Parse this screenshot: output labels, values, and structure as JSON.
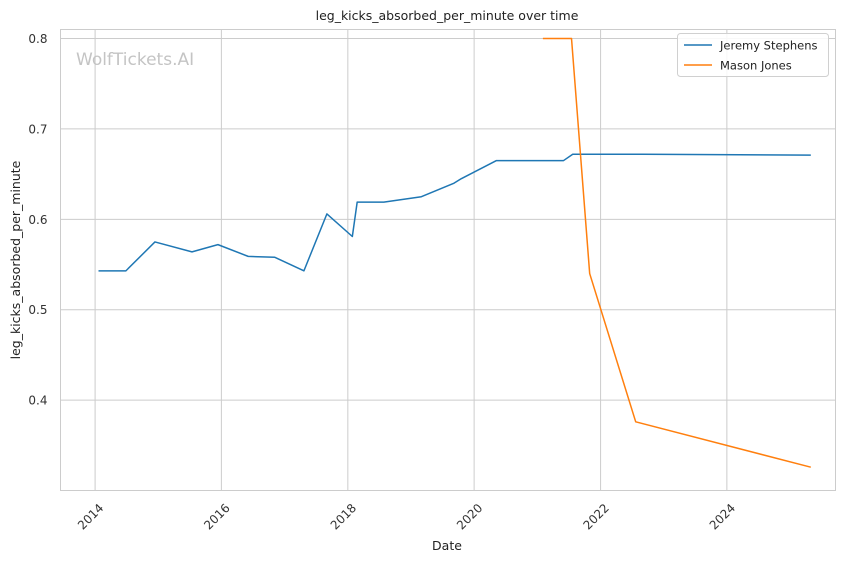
{
  "chart_data": {
    "type": "line",
    "title": "leg_kicks_absorbed_per_minute over time",
    "xlabel": "Date",
    "ylabel": "leg_kicks_absorbed_per_minute",
    "watermark": "WolfTickets.AI",
    "x_ticks": [
      "2014",
      "2016",
      "2018",
      "2020",
      "2022",
      "2024"
    ],
    "y_ticks": [
      "0.4",
      "0.5",
      "0.6",
      "0.7",
      "0.8"
    ],
    "xlim": [
      "2013-06-15",
      "2025-09-20"
    ],
    "ylim": [
      0.3,
      0.81
    ],
    "grid": true,
    "legend_position": "top-right",
    "series": [
      {
        "name": "Jeremy Stephens",
        "color": "#1f77b4",
        "points": [
          [
            "2014-01-25",
            0.543
          ],
          [
            "2014-06-28",
            0.543
          ],
          [
            "2014-12-13",
            0.575
          ],
          [
            "2015-07-15",
            0.564
          ],
          [
            "2015-12-12",
            0.572
          ],
          [
            "2016-06-04",
            0.559
          ],
          [
            "2016-11-05",
            0.558
          ],
          [
            "2017-04-22",
            0.543
          ],
          [
            "2017-09-02",
            0.606
          ],
          [
            "2018-01-27",
            0.581
          ],
          [
            "2018-02-24",
            0.619
          ],
          [
            "2018-07-28",
            0.619
          ],
          [
            "2019-03-02",
            0.625
          ],
          [
            "2019-09-07",
            0.64
          ],
          [
            "2019-10-19",
            0.645
          ],
          [
            "2020-05-09",
            0.665
          ],
          [
            "2021-06-01",
            0.665
          ],
          [
            "2021-07-24",
            0.672
          ],
          [
            "2022-09-01",
            0.672
          ],
          [
            "2025-04-26",
            0.671
          ]
        ]
      },
      {
        "name": "Mason Jones",
        "color": "#ff7f0e",
        "points": [
          [
            "2021-02-06",
            0.8
          ],
          [
            "2021-07-17",
            0.8
          ],
          [
            "2021-10-30",
            0.54
          ],
          [
            "2022-07-23",
            0.376
          ],
          [
            "2025-04-26",
            0.326
          ]
        ]
      }
    ]
  }
}
